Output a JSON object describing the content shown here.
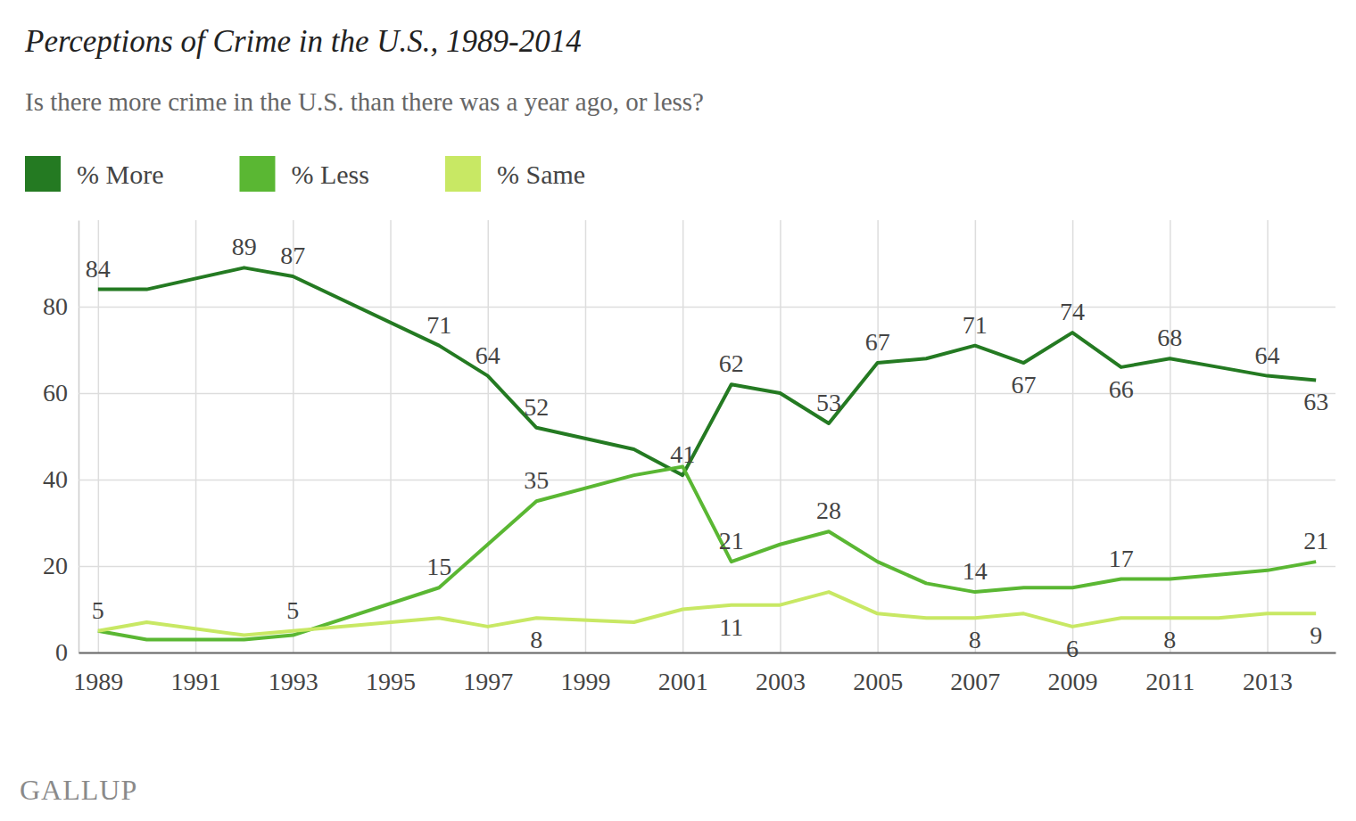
{
  "chart_data": {
    "type": "line",
    "title": "Perceptions of Crime in the U.S., 1989-2014",
    "subtitle": "Is there more crime in the U.S. than there was a year ago, or less?",
    "source": "GALLUP",
    "x": [
      1989,
      1990,
      1992,
      1993,
      1996,
      1997,
      1998,
      2000,
      2001,
      2002,
      2003,
      2004,
      2005,
      2006,
      2007,
      2008,
      2009,
      2010,
      2011,
      2012,
      2013,
      2014
    ],
    "series": [
      {
        "name": "% More",
        "color": "#247a22",
        "values": [
          84,
          84,
          89,
          87,
          71,
          64,
          52,
          47,
          41,
          62,
          60,
          53,
          67,
          68,
          71,
          67,
          74,
          66,
          68,
          66,
          64,
          63
        ],
        "value_labels": [
          "84",
          null,
          "89",
          "87",
          "71",
          "64",
          "52",
          null,
          "41",
          "62",
          null,
          "53",
          "67",
          null,
          "71",
          "67",
          "74",
          "66",
          "68",
          null,
          "64",
          "63"
        ]
      },
      {
        "name": "% Less",
        "color": "#5ab733",
        "values": [
          5,
          3,
          3,
          4,
          15,
          25,
          35,
          41,
          43,
          21,
          25,
          28,
          21,
          16,
          14,
          15,
          15,
          17,
          17,
          18,
          19,
          21
        ],
        "value_labels": [
          "5",
          null,
          null,
          null,
          "15",
          null,
          "35",
          null,
          null,
          "21",
          null,
          "28",
          null,
          null,
          "14",
          null,
          null,
          "17",
          null,
          null,
          null,
          "21"
        ]
      },
      {
        "name": "% Same",
        "color": "#c8e864",
        "values": [
          5,
          7,
          4,
          5,
          8,
          6,
          8,
          7,
          10,
          11,
          11,
          14,
          9,
          8,
          8,
          9,
          6,
          8,
          8,
          8,
          9,
          9
        ],
        "value_labels": [
          null,
          null,
          null,
          "5",
          null,
          null,
          "8",
          null,
          null,
          "11",
          null,
          null,
          null,
          null,
          "8",
          null,
          "6",
          null,
          "8",
          null,
          null,
          "9"
        ]
      }
    ],
    "xlim": [
      1988.6,
      2014.4
    ],
    "xticks": [
      1989,
      1991,
      1993,
      1995,
      1997,
      1999,
      2001,
      2003,
      2005,
      2007,
      2009,
      2011,
      2013
    ],
    "ylim": [
      0,
      100
    ],
    "yticks": [
      0,
      20,
      40,
      60,
      80
    ],
    "grid": true,
    "legend": "top-left",
    "data_labels": true
  }
}
